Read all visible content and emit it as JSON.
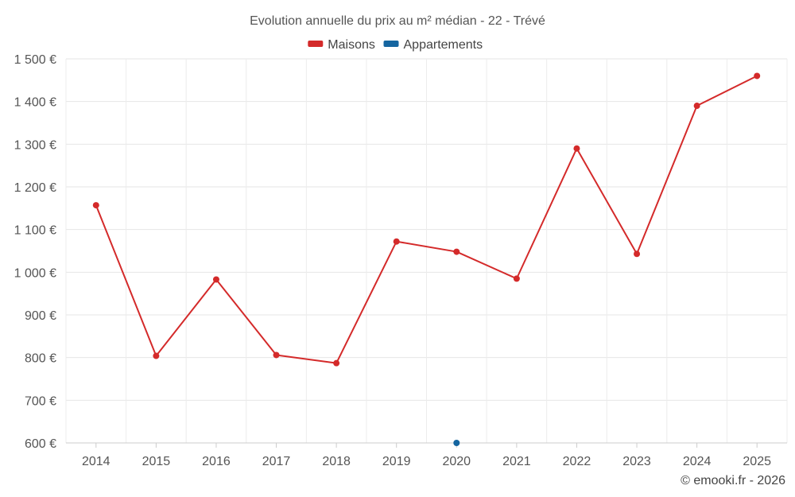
{
  "chart_data": {
    "type": "line",
    "title": "Evolution annuelle du prix au m² médian - 22 - Trévé",
    "xlabel": "",
    "ylabel": "",
    "categories": [
      "2014",
      "2015",
      "2016",
      "2017",
      "2018",
      "2019",
      "2020",
      "2021",
      "2022",
      "2023",
      "2024",
      "2025"
    ],
    "ylim": [
      600,
      1500
    ],
    "yticks": [
      600,
      700,
      800,
      900,
      1000,
      1100,
      1200,
      1300,
      1400,
      1500
    ],
    "ytick_labels": [
      "600 €",
      "700 €",
      "800 €",
      "900 €",
      "1 000 €",
      "1 100 €",
      "1 200 €",
      "1 300 €",
      "1 400 €",
      "1 500 €"
    ],
    "grid": true,
    "legend_position": "top-center",
    "series": [
      {
        "name": "Maisons",
        "color": "#d42a2a",
        "values": [
          1157,
          804,
          983,
          806,
          787,
          1072,
          1048,
          985,
          1290,
          1043,
          1390,
          1460
        ]
      },
      {
        "name": "Appartements",
        "color": "#1565a0",
        "values": [
          null,
          null,
          null,
          null,
          null,
          null,
          600,
          null,
          null,
          null,
          null,
          null
        ]
      }
    ],
    "credit": "© emooki.fr - 2026"
  }
}
